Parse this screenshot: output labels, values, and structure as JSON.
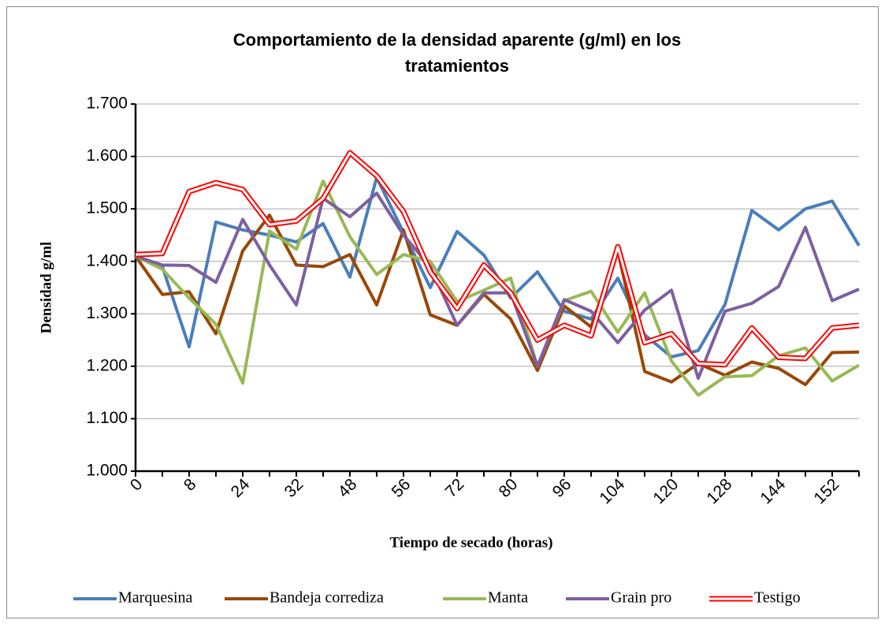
{
  "chart_data": {
    "type": "line",
    "title": "Comportamiento de la densidad aparente (g/ml) en los tratamientos",
    "x_label": "Tiempo de secado (horas)",
    "y_label": "Densidad g/ml",
    "categories": [
      "0",
      null,
      "8",
      null,
      "24",
      null,
      "32",
      null,
      "48",
      null,
      "56",
      null,
      "72",
      null,
      "80",
      null,
      "96",
      null,
      "104",
      null,
      "120",
      null,
      "128",
      null,
      "144",
      null,
      "152",
      null
    ],
    "ylim": [
      1.0,
      1.7
    ],
    "yticks": [
      {
        "value": 1.0,
        "label": "1.000"
      },
      {
        "value": 1.1,
        "label": "1.100"
      },
      {
        "value": 1.2,
        "label": "1.200"
      },
      {
        "value": 1.3,
        "label": "1.300"
      },
      {
        "value": 1.4,
        "label": "1.400"
      },
      {
        "value": 1.5,
        "label": "1.500"
      },
      {
        "value": 1.6,
        "label": "1.600"
      },
      {
        "value": 1.7,
        "label": "1.700"
      }
    ],
    "grid": true,
    "legend": "bottom",
    "series": [
      {
        "name": "Marquesina",
        "color": "#4a7ebb",
        "values": [
          1.41,
          1.39,
          1.237,
          1.475,
          1.46,
          1.45,
          1.437,
          1.472,
          1.37,
          1.56,
          1.455,
          1.35,
          1.457,
          1.412,
          1.33,
          1.38,
          1.305,
          1.29,
          1.368,
          1.26,
          1.218,
          1.23,
          1.318,
          1.497,
          1.46,
          1.5,
          1.515,
          1.43
        ]
      },
      {
        "name": "Bandeja corrediza",
        "color": "#984807",
        "values": [
          1.41,
          1.337,
          1.342,
          1.262,
          1.42,
          1.488,
          1.393,
          1.39,
          1.413,
          1.317,
          1.46,
          1.298,
          1.278,
          1.337,
          1.29,
          1.192,
          1.315,
          1.275,
          1.42,
          1.19,
          1.17,
          1.205,
          1.183,
          1.208,
          1.196,
          1.165,
          1.226,
          1.227
        ]
      },
      {
        "name": "Manta",
        "color": "#98b954",
        "values": [
          1.41,
          1.385,
          1.33,
          1.28,
          1.168,
          1.458,
          1.423,
          1.553,
          1.447,
          1.375,
          1.413,
          1.4,
          1.323,
          1.345,
          1.368,
          1.2,
          1.325,
          1.343,
          1.265,
          1.34,
          1.21,
          1.145,
          1.18,
          1.182,
          1.22,
          1.235,
          1.172,
          1.202
        ]
      },
      {
        "name": "Grain pro",
        "color": "#7d60a0",
        "values": [
          1.41,
          1.393,
          1.392,
          1.36,
          1.48,
          1.393,
          1.317,
          1.52,
          1.485,
          1.53,
          1.45,
          1.39,
          1.278,
          1.34,
          1.34,
          1.2,
          1.327,
          1.305,
          1.245,
          1.307,
          1.345,
          1.177,
          1.305,
          1.32,
          1.352,
          1.465,
          1.325,
          1.347
        ]
      },
      {
        "name": "Testigo",
        "color": "#ff0000",
        "values": [
          1.413,
          1.415,
          1.533,
          1.55,
          1.537,
          1.47,
          1.477,
          1.52,
          1.607,
          1.563,
          1.495,
          1.38,
          1.31,
          1.393,
          1.34,
          1.25,
          1.278,
          1.258,
          1.428,
          1.245,
          1.262,
          1.205,
          1.203,
          1.273,
          1.217,
          1.215,
          1.273,
          1.278
        ]
      }
    ]
  }
}
